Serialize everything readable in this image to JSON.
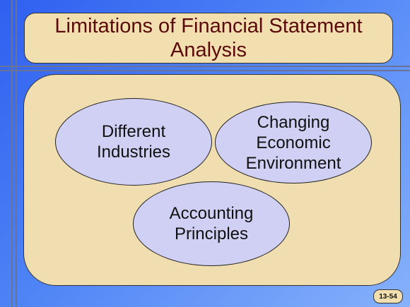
{
  "slide": {
    "title": "Limitations of Financial Statement Analysis",
    "bubbles": [
      {
        "label": "Different\nIndustries"
      },
      {
        "label": "Changing\nEconomic\nEnvironment"
      },
      {
        "label": "Accounting\nPrinciples"
      }
    ],
    "slide_number": "13-54"
  },
  "colors": {
    "title_text": "#5a0a0a",
    "panel": "#f1deb0",
    "bubble": "#cfd0f3",
    "background": "#4f84f6"
  }
}
